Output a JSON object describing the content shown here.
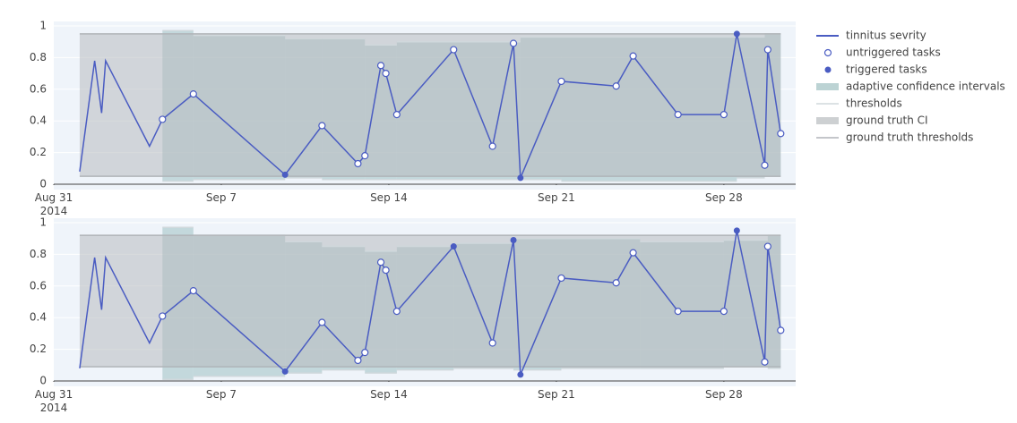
{
  "chart_data": [
    {
      "type": "line",
      "xlim": [
        "2014-08-31",
        "2014-10-01"
      ],
      "xticks": [
        {
          "value": "2014-08-31",
          "label": "Aug 31\n2014"
        },
        {
          "value": "2014-09-07",
          "label": "Sep 7"
        },
        {
          "value": "2014-09-14",
          "label": "Sep 14"
        },
        {
          "value": "2014-09-21",
          "label": "Sep 21"
        },
        {
          "value": "2014-09-28",
          "label": "Sep 28"
        }
      ],
      "ylim": [
        0,
        1
      ],
      "yticks": [
        0,
        0.2,
        0.4,
        0.6,
        0.8,
        1
      ],
      "grid": true,
      "series": [
        {
          "name": "tinnitus sevrity",
          "kind": "line",
          "color": "#4a5cc2",
          "x": [
            "2014-09-01T02:00",
            "2014-09-01T17:00",
            "2014-09-02T00:00",
            "2014-09-02T04:00",
            "2014-09-04T00:00",
            "2014-09-04T13:00",
            "2014-09-05T20:00",
            "2014-09-09T16:00",
            "2014-09-11T05:00",
            "2014-09-12T17:00",
            "2014-09-13T00:00",
            "2014-09-13T16:00",
            "2014-09-13T21:00",
            "2014-09-14T08:00",
            "2014-09-16T17:00",
            "2014-09-18T08:00",
            "2014-09-19T05:00",
            "2014-09-19T12:00",
            "2014-09-21T05:00",
            "2014-09-23T12:00",
            "2014-09-24T05:00",
            "2014-09-26T02:00",
            "2014-09-28T00:00",
            "2014-09-28T13:00",
            "2014-09-29T17:00",
            "2014-09-29T20:00",
            "2014-09-30T09:00"
          ],
          "values": [
            0.08,
            0.78,
            0.45,
            0.78,
            0.24,
            0.41,
            0.57,
            0.06,
            0.37,
            0.13,
            0.18,
            0.75,
            0.7,
            0.44,
            0.85,
            0.24,
            0.89,
            0.04,
            0.65,
            0.62,
            0.81,
            0.44,
            0.44,
            0.95,
            0.12,
            0.85,
            0.32
          ]
        },
        {
          "name": "untriggered tasks",
          "kind": "open-marker",
          "color": "#4a5cc2",
          "x": [
            "2014-09-04T13:00",
            "2014-09-05T20:00",
            "2014-09-11T05:00",
            "2014-09-12T17:00",
            "2014-09-13T00:00",
            "2014-09-13T16:00",
            "2014-09-13T21:00",
            "2014-09-14T08:00",
            "2014-09-16T17:00",
            "2014-09-18T08:00",
            "2014-09-19T05:00",
            "2014-09-21T05:00",
            "2014-09-23T12:00",
            "2014-09-24T05:00",
            "2014-09-26T02:00",
            "2014-09-28T00:00",
            "2014-09-29T17:00",
            "2014-09-29T20:00",
            "2014-09-30T09:00"
          ],
          "values": [
            0.41,
            0.57,
            0.37,
            0.13,
            0.18,
            0.75,
            0.7,
            0.44,
            0.85,
            0.24,
            0.89,
            0.65,
            0.62,
            0.81,
            0.44,
            0.44,
            0.12,
            0.85,
            0.32
          ]
        },
        {
          "name": "triggered tasks",
          "kind": "marker",
          "color": "#4a5cc2",
          "x": [
            "2014-09-09T16:00",
            "2014-09-19T12:00",
            "2014-09-28T13:00"
          ],
          "values": [
            0.06,
            0.04,
            0.95
          ]
        },
        {
          "name": "adaptive confidence intervals",
          "kind": "band",
          "color": "#9fc1c2",
          "edges": [
            "2014-09-04T13:00",
            "2014-09-05T20:00",
            "2014-09-09T16:00",
            "2014-09-11T05:00",
            "2014-09-13T00:00",
            "2014-09-14T08:00",
            "2014-09-19T12:00",
            "2014-09-21T05:00",
            "2014-09-28T13:00",
            "2014-09-29T17:00",
            "2014-09-30T09:00"
          ],
          "lower": [
            0.02,
            0.03,
            0.04,
            0.03,
            0.03,
            0.03,
            0.03,
            0.02,
            0.04,
            0.05
          ],
          "upper": [
            0.97,
            0.94,
            0.92,
            0.92,
            0.88,
            0.9,
            0.93,
            0.93,
            0.93,
            0.95
          ]
        },
        {
          "name": "thresholds",
          "kind": "lines",
          "color": "#d0d8dc",
          "edges": [
            "2014-09-04T13:00",
            "2014-09-05T20:00",
            "2014-09-09T16:00",
            "2014-09-11T05:00",
            "2014-09-13T00:00",
            "2014-09-14T08:00",
            "2014-09-19T12:00",
            "2014-09-21T05:00",
            "2014-09-28T13:00",
            "2014-09-29T17:00",
            "2014-09-30T09:00"
          ],
          "lower": [
            0.02,
            0.03,
            0.04,
            0.03,
            0.03,
            0.03,
            0.03,
            0.02,
            0.04,
            0.05
          ],
          "upper": [
            0.97,
            0.94,
            0.92,
            0.92,
            0.88,
            0.9,
            0.93,
            0.93,
            0.93,
            0.95
          ]
        },
        {
          "name": "ground truth CI",
          "kind": "band",
          "color": "#b8bcbf",
          "edges": [
            "2014-09-01T02:00",
            "2014-09-30T09:00"
          ],
          "lower": [
            0.05
          ],
          "upper": [
            0.95
          ]
        },
        {
          "name": "ground truth thresholds",
          "kind": "lines",
          "color": "#b0b4b8",
          "edges": [
            "2014-09-01T02:00",
            "2014-09-30T09:00"
          ],
          "lower": [
            0.05
          ],
          "upper": [
            0.95
          ]
        }
      ]
    },
    {
      "type": "line",
      "xlim": [
        "2014-08-31",
        "2014-10-01"
      ],
      "xticks": [
        {
          "value": "2014-08-31",
          "label": "Aug 31\n2014"
        },
        {
          "value": "2014-09-07",
          "label": "Sep 7"
        },
        {
          "value": "2014-09-14",
          "label": "Sep 14"
        },
        {
          "value": "2014-09-21",
          "label": "Sep 21"
        },
        {
          "value": "2014-09-28",
          "label": "Sep 28"
        }
      ],
      "ylim": [
        0,
        1
      ],
      "yticks": [
        0,
        0.2,
        0.4,
        0.6,
        0.8,
        1
      ],
      "grid": true,
      "series": [
        {
          "name": "tinnitus sevrity",
          "kind": "line",
          "color": "#4a5cc2",
          "x": [
            "2014-09-01T02:00",
            "2014-09-01T17:00",
            "2014-09-02T00:00",
            "2014-09-02T04:00",
            "2014-09-04T00:00",
            "2014-09-04T13:00",
            "2014-09-05T20:00",
            "2014-09-09T16:00",
            "2014-09-11T05:00",
            "2014-09-12T17:00",
            "2014-09-13T00:00",
            "2014-09-13T16:00",
            "2014-09-13T21:00",
            "2014-09-14T08:00",
            "2014-09-16T17:00",
            "2014-09-18T08:00",
            "2014-09-19T05:00",
            "2014-09-19T12:00",
            "2014-09-21T05:00",
            "2014-09-23T12:00",
            "2014-09-24T05:00",
            "2014-09-26T02:00",
            "2014-09-28T00:00",
            "2014-09-28T13:00",
            "2014-09-29T17:00",
            "2014-09-29T20:00",
            "2014-09-30T09:00"
          ],
          "values": [
            0.08,
            0.78,
            0.45,
            0.78,
            0.24,
            0.41,
            0.57,
            0.06,
            0.37,
            0.13,
            0.18,
            0.75,
            0.7,
            0.44,
            0.85,
            0.24,
            0.89,
            0.04,
            0.65,
            0.62,
            0.81,
            0.44,
            0.44,
            0.95,
            0.12,
            0.85,
            0.32
          ]
        },
        {
          "name": "untriggered tasks",
          "kind": "open-marker",
          "color": "#4a5cc2",
          "x": [
            "2014-09-04T13:00",
            "2014-09-05T20:00",
            "2014-09-11T05:00",
            "2014-09-12T17:00",
            "2014-09-13T00:00",
            "2014-09-13T16:00",
            "2014-09-13T21:00",
            "2014-09-14T08:00",
            "2014-09-18T08:00",
            "2014-09-21T05:00",
            "2014-09-23T12:00",
            "2014-09-24T05:00",
            "2014-09-26T02:00",
            "2014-09-28T00:00",
            "2014-09-29T17:00",
            "2014-09-29T20:00",
            "2014-09-30T09:00"
          ],
          "values": [
            0.41,
            0.57,
            0.37,
            0.13,
            0.18,
            0.75,
            0.7,
            0.44,
            0.24,
            0.65,
            0.62,
            0.81,
            0.44,
            0.44,
            0.12,
            0.85,
            0.32
          ]
        },
        {
          "name": "triggered tasks",
          "kind": "marker",
          "color": "#4a5cc2",
          "x": [
            "2014-09-09T16:00",
            "2014-09-16T17:00",
            "2014-09-19T05:00",
            "2014-09-19T12:00",
            "2014-09-28T13:00"
          ],
          "values": [
            0.06,
            0.85,
            0.89,
            0.04,
            0.95
          ]
        },
        {
          "name": "adaptive confidence intervals",
          "kind": "band",
          "color": "#9fc1c2",
          "edges": [
            "2014-09-04T13:00",
            "2014-09-05T20:00",
            "2014-09-09T16:00",
            "2014-09-11T05:00",
            "2014-09-13T00:00",
            "2014-09-14T08:00",
            "2014-09-16T17:00",
            "2014-09-19T05:00",
            "2014-09-21T05:00",
            "2014-09-24T12:00",
            "2014-09-28T00:00",
            "2014-09-29T20:00",
            "2014-09-30T09:00"
          ],
          "lower": [
            0.01,
            0.03,
            0.05,
            0.07,
            0.05,
            0.07,
            0.08,
            0.07,
            0.08,
            0.08,
            0.09,
            0.08
          ],
          "upper": [
            0.97,
            0.92,
            0.88,
            0.85,
            0.82,
            0.85,
            0.87,
            0.9,
            0.9,
            0.88,
            0.89,
            0.92
          ]
        },
        {
          "name": "thresholds",
          "kind": "lines",
          "color": "#d0d8dc",
          "edges": [
            "2014-09-04T13:00",
            "2014-09-05T20:00",
            "2014-09-09T16:00",
            "2014-09-11T05:00",
            "2014-09-13T00:00",
            "2014-09-14T08:00",
            "2014-09-16T17:00",
            "2014-09-19T05:00",
            "2014-09-21T05:00",
            "2014-09-24T12:00",
            "2014-09-28T00:00",
            "2014-09-29T20:00",
            "2014-09-30T09:00"
          ],
          "lower": [
            0.01,
            0.03,
            0.05,
            0.07,
            0.05,
            0.07,
            0.08,
            0.07,
            0.08,
            0.08,
            0.09,
            0.08
          ],
          "upper": [
            0.97,
            0.92,
            0.88,
            0.85,
            0.82,
            0.85,
            0.87,
            0.9,
            0.9,
            0.88,
            0.89,
            0.92
          ]
        },
        {
          "name": "ground truth CI",
          "kind": "band",
          "color": "#b8bcbf",
          "edges": [
            "2014-09-01T02:00",
            "2014-09-30T09:00"
          ],
          "lower": [
            0.09
          ],
          "upper": [
            0.92
          ]
        },
        {
          "name": "ground truth thresholds",
          "kind": "lines",
          "color": "#b0b4b8",
          "edges": [
            "2014-09-01T02:00",
            "2014-09-30T09:00"
          ],
          "lower": [
            0.09
          ],
          "upper": [
            0.92
          ]
        }
      ]
    }
  ]
}
